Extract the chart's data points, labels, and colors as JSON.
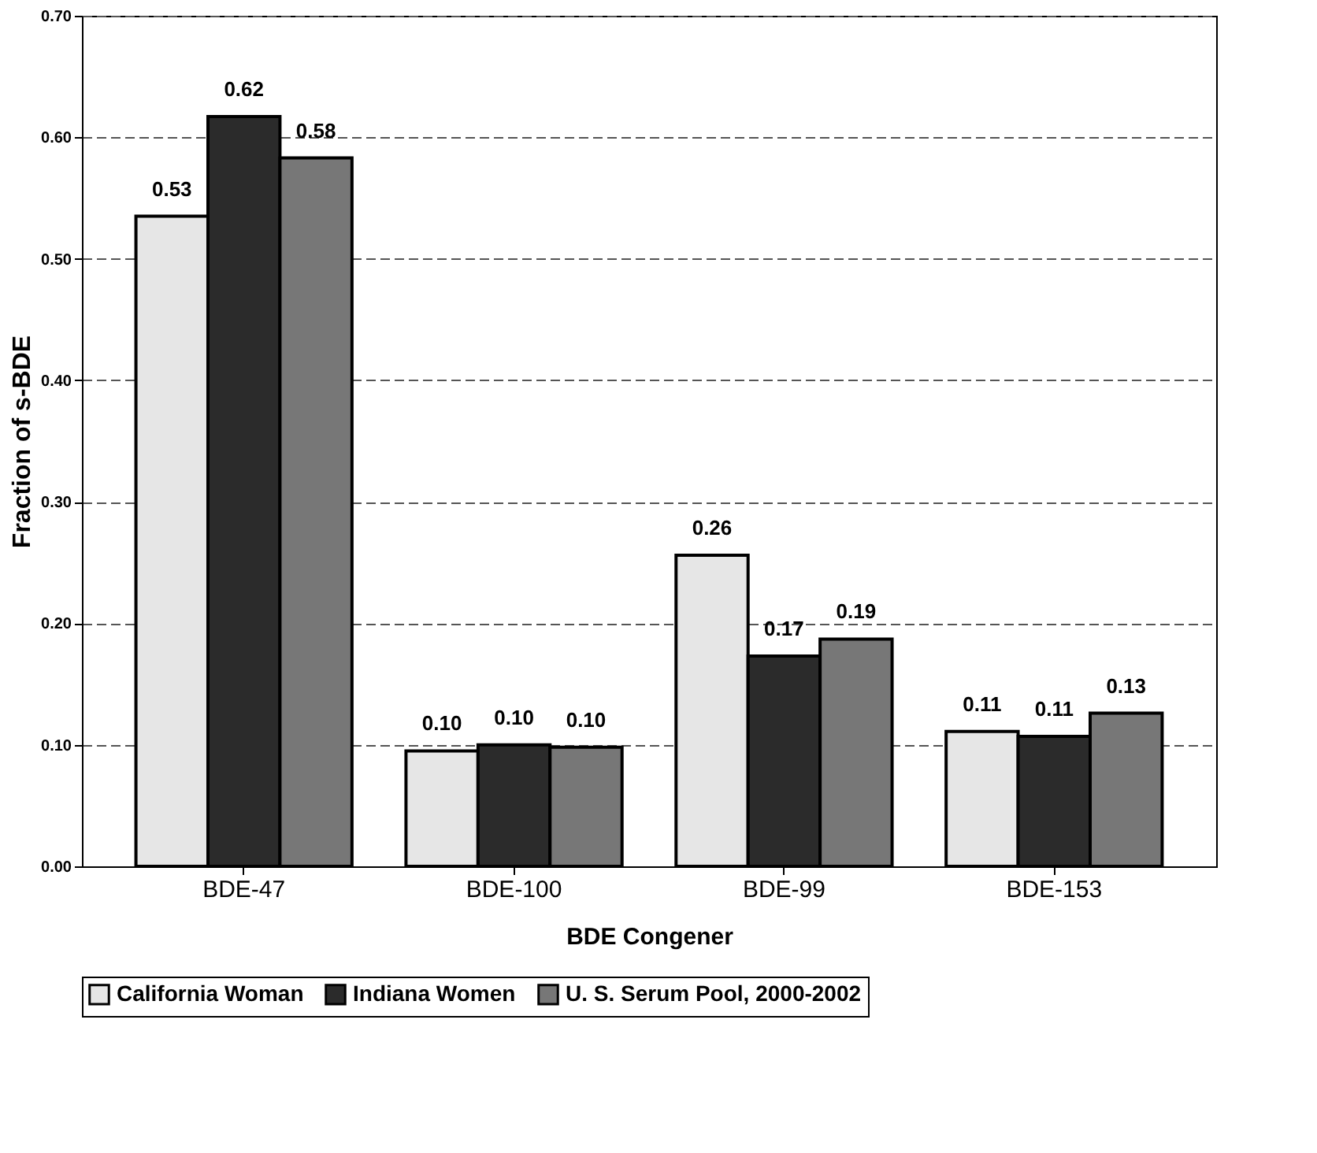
{
  "chart_data": {
    "type": "bar",
    "xlabel": "BDE Congener",
    "ylabel": "Fraction of s-BDE",
    "categories": [
      "BDE-47",
      "BDE-100",
      "BDE-99",
      "BDE-153"
    ],
    "series": [
      {
        "name": "California Woman",
        "color": "#e6e6e6",
        "values": [
          0.535,
          0.095,
          0.256,
          0.111
        ],
        "value_labels": [
          "0.53",
          "0.10",
          "0.26",
          "0.11"
        ]
      },
      {
        "name": "Indiana Women",
        "color": "#2b2b2b",
        "values": [
          0.617,
          0.1,
          0.173,
          0.107
        ],
        "value_labels": [
          "0.62",
          "0.10",
          "0.17",
          "0.11"
        ]
      },
      {
        "name": "U. S. Serum Pool, 2000-2002",
        "color": "#777777",
        "values": [
          0.583,
          0.098,
          0.187,
          0.126
        ],
        "value_labels": [
          "0.58",
          "0.10",
          "0.19",
          "0.13"
        ]
      }
    ],
    "ylim": [
      0,
      0.7
    ],
    "yticks": [
      {
        "value": 0,
        "label": "0.00"
      },
      {
        "value": 0.1,
        "label": "0.10"
      },
      {
        "value": 0.2,
        "label": "0.20"
      },
      {
        "value": 0.3,
        "label": "0.30"
      },
      {
        "value": 0.4,
        "label": "0.40"
      },
      {
        "value": 0.5,
        "label": "0.50"
      },
      {
        "value": 0.6,
        "label": "0.60"
      },
      {
        "value": 0.7,
        "label": "0.70"
      }
    ],
    "grid": "y",
    "legend": "bottom"
  }
}
